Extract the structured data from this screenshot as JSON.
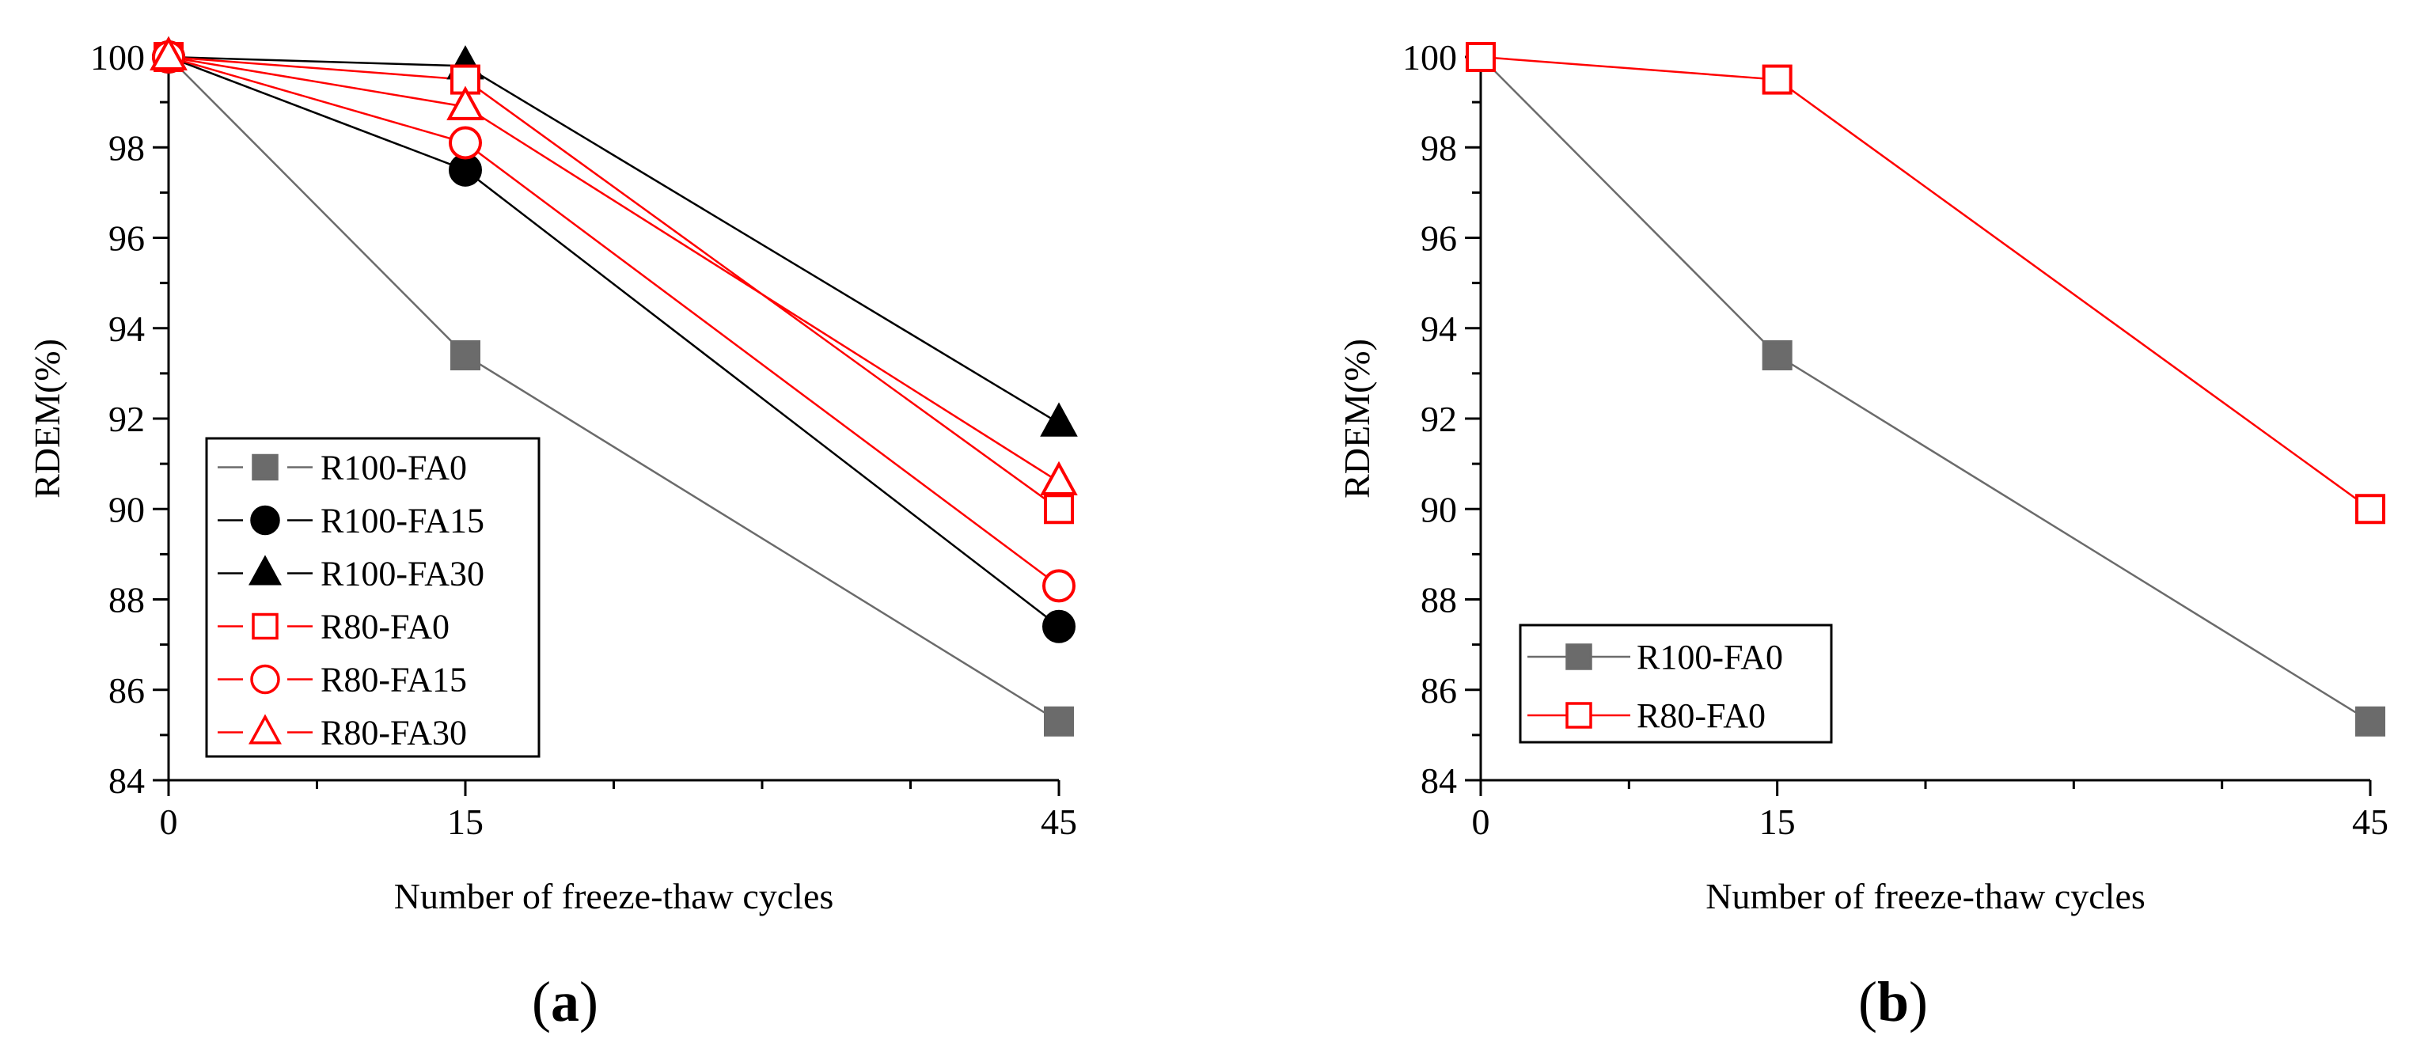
{
  "colors": {
    "gray": "#6b6b6b",
    "black": "#000000",
    "red": "#ff0000"
  },
  "chart_data": [
    {
      "type": "line",
      "panel": "a",
      "panel_label": {
        "open": "(",
        "letter": "a",
        "close": ")"
      },
      "xlabel": "Number of freeze-thaw cycles",
      "ylabel": "RDEM(%)",
      "x": [
        0,
        15,
        45
      ],
      "xticks": [
        0,
        15,
        45
      ],
      "xlim": [
        0,
        45
      ],
      "ylim": [
        84,
        100
      ],
      "yticks": [
        84,
        86,
        88,
        90,
        92,
        94,
        96,
        98,
        100
      ],
      "grid": false,
      "legend_position": "bottom-left",
      "series": [
        {
          "name": "R100-FA0",
          "values": [
            100,
            93.4,
            85.3
          ],
          "marker": "square",
          "filled": true,
          "color": "#6b6b6b"
        },
        {
          "name": "R100-FA15",
          "values": [
            100,
            97.5,
            87.4
          ],
          "marker": "circle",
          "filled": true,
          "color": "#000000"
        },
        {
          "name": "R100-FA30",
          "values": [
            100,
            99.8,
            91.9
          ],
          "marker": "triangle",
          "filled": true,
          "color": "#000000"
        },
        {
          "name": "R80-FA0",
          "values": [
            100,
            99.5,
            90.0
          ],
          "marker": "square",
          "filled": false,
          "color": "#ff0000"
        },
        {
          "name": "R80-FA15",
          "values": [
            100,
            98.1,
            88.3
          ],
          "marker": "circle",
          "filled": false,
          "color": "#ff0000"
        },
        {
          "name": "R80-FA30",
          "values": [
            100,
            98.9,
            90.6
          ],
          "marker": "triangle",
          "filled": false,
          "color": "#ff0000"
        }
      ]
    },
    {
      "type": "line",
      "panel": "b",
      "panel_label": {
        "open": "(",
        "letter": "b",
        "close": ")"
      },
      "xlabel": "Number of freeze-thaw cycles",
      "ylabel": "RDEM(%)",
      "x": [
        0,
        15,
        45
      ],
      "xticks": [
        0,
        15,
        45
      ],
      "xlim": [
        0,
        45
      ],
      "ylim": [
        84,
        100
      ],
      "yticks": [
        84,
        86,
        88,
        90,
        92,
        94,
        96,
        98,
        100
      ],
      "grid": false,
      "legend_position": "bottom-left",
      "series": [
        {
          "name": "R100-FA0",
          "values": [
            100,
            93.4,
            85.3
          ],
          "marker": "square",
          "filled": true,
          "color": "#6b6b6b"
        },
        {
          "name": "R80-FA0",
          "values": [
            100,
            99.5,
            90.0
          ],
          "marker": "square",
          "filled": false,
          "color": "#ff0000"
        }
      ]
    }
  ]
}
